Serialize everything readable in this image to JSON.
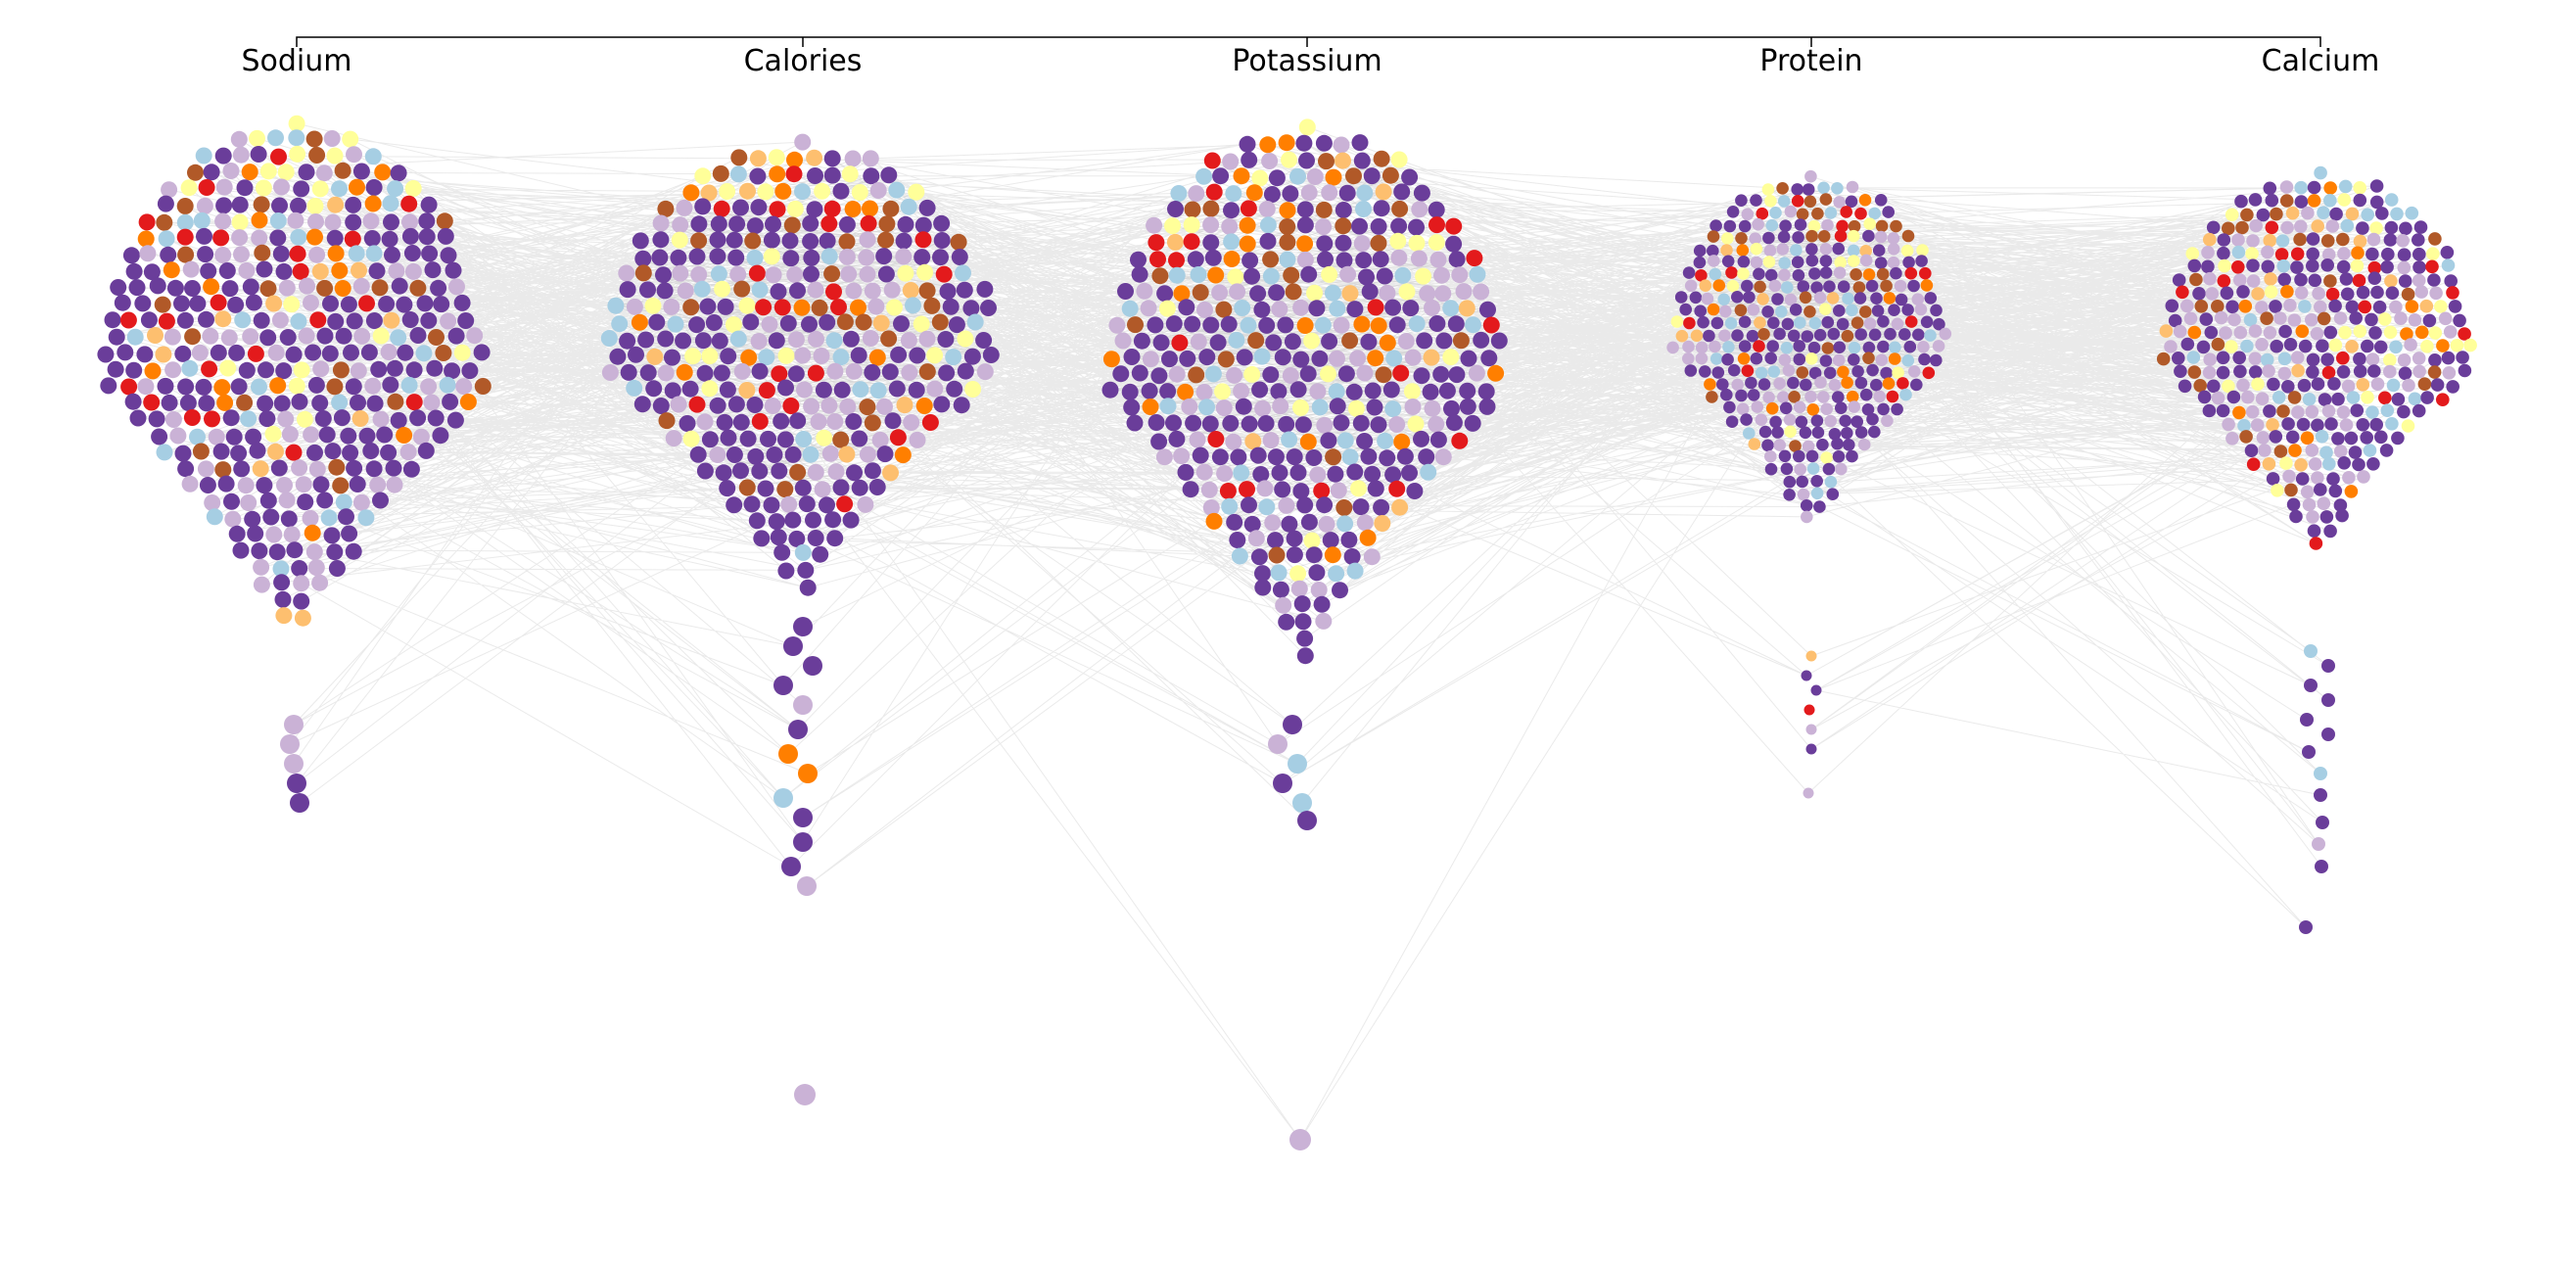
{
  "chart_data": {
    "type": "beeswarm-parallel-coordinates",
    "title": "",
    "axes": [
      "Sodium",
      "Calories",
      "Potassium",
      "Protein",
      "Calcium"
    ],
    "color_categories": [
      "dark-purple",
      "light-purple",
      "light-blue",
      "pale-yellow",
      "light-orange",
      "orange",
      "brown",
      "red"
    ],
    "palette": {
      "dark-purple": "#6a3d9a",
      "light-purple": "#cab2d6",
      "light-blue": "#a6cee3",
      "pale-yellow": "#ffff99",
      "light-orange": "#fdbf6f",
      "orange": "#ff7f00",
      "brown": "#b15928",
      "red": "#e31a1c"
    },
    "category_weights": [
      0.4,
      0.18,
      0.1,
      0.08,
      0.04,
      0.06,
      0.08,
      0.06
    ],
    "connecting_lines": true,
    "grid": false,
    "legend": "none"
  }
}
